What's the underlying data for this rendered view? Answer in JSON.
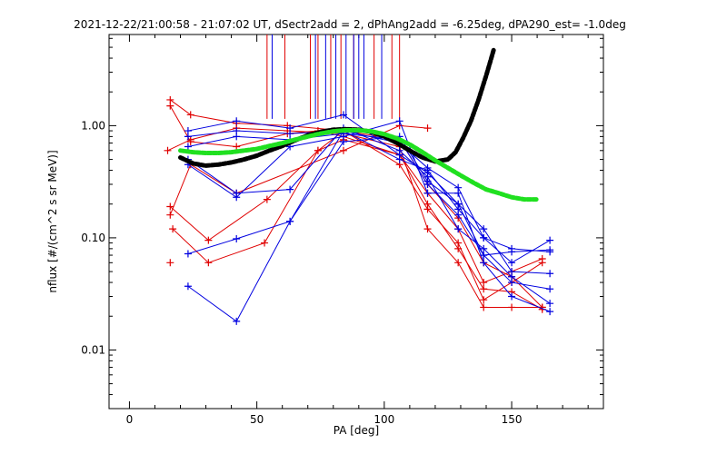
{
  "chart_data": {
    "type": "line",
    "title": "2021-12-22/21:00:58 - 21:07:02 UT, dSectr2add = 2, dPhAng2add = -6.25deg, dPA290_est=  -1.0deg",
    "xlabel": "PA [deg]",
    "ylabel": "nflux [#/(cm^2 s sr MeV)]",
    "xlim": [
      -8,
      186
    ],
    "ylim": [
      0.003,
      6.5
    ],
    "ylog": true,
    "grid": false,
    "xticks": [
      0,
      50,
      100,
      150
    ],
    "xtick_labels": [
      "0",
      "50",
      "100",
      "150"
    ],
    "yticks": [
      0.01,
      0.1,
      1.0
    ],
    "ytick_labels": [
      "0.01",
      "0.10",
      "1.00"
    ],
    "colors": {
      "red": "#e00000",
      "blue": "#0000e0",
      "black": "#000000",
      "green": "#20e020"
    },
    "series": [
      {
        "color": "red",
        "marker": "+",
        "x": [
          16,
          24,
          42,
          62,
          84,
          106,
          117,
          129,
          139,
          150,
          162
        ],
        "y": [
          1.7,
          1.25,
          1.05,
          1.0,
          0.9,
          0.75,
          0.3,
          0.15,
          0.06,
          0.045,
          0.024
        ]
      },
      {
        "color": "red",
        "marker": "+",
        "x": [
          16,
          24,
          42,
          62,
          74,
          84,
          106,
          117,
          129,
          139,
          150,
          162
        ],
        "y": [
          1.5,
          0.72,
          0.65,
          0.85,
          0.9,
          0.8,
          0.55,
          0.2,
          0.08,
          0.035,
          0.033,
          0.023
        ]
      },
      {
        "color": "red",
        "marker": "+",
        "x": [
          15,
          24,
          42,
          62,
          84,
          106,
          117,
          129,
          139,
          150,
          162
        ],
        "y": [
          0.6,
          0.75,
          0.95,
          0.9,
          0.85,
          0.65,
          0.12,
          0.06,
          0.024,
          0.024,
          0.024
        ]
      },
      {
        "color": "red",
        "marker": "+",
        "x": [
          16,
          31,
          54,
          74,
          84,
          106,
          117,
          129,
          139,
          150,
          162
        ],
        "y": [
          0.19,
          0.095,
          0.22,
          0.6,
          0.75,
          0.55,
          0.25,
          0.12,
          0.04,
          0.05,
          0.065
        ]
      },
      {
        "color": "red",
        "marker": "+",
        "x": [
          17,
          31,
          53,
          74,
          84,
          106,
          117,
          129,
          139,
          150,
          162
        ],
        "y": [
          0.12,
          0.06,
          0.09,
          0.6,
          0.9,
          0.45,
          0.18,
          0.09,
          0.028,
          0.04,
          0.06
        ]
      },
      {
        "color": "red",
        "marker": "+",
        "x": [
          16,
          24,
          42,
          84,
          106,
          117
        ],
        "y": [
          0.16,
          0.45,
          0.25,
          0.6,
          1.0,
          0.95
        ]
      },
      {
        "color": "red",
        "marker": "+",
        "x": [
          16
        ],
        "y": [
          0.06
        ]
      },
      {
        "color": "blue",
        "marker": "+",
        "x": [
          23,
          42,
          63,
          84,
          106,
          117,
          129,
          139,
          150,
          165
        ],
        "y": [
          0.9,
          1.1,
          0.95,
          1.25,
          0.55,
          0.38,
          0.2,
          0.12,
          0.05,
          0.048
        ]
      },
      {
        "color": "blue",
        "marker": "+",
        "x": [
          23,
          42,
          63,
          84,
          106,
          117,
          129,
          139,
          150,
          165
        ],
        "y": [
          0.8,
          0.9,
          0.85,
          0.9,
          0.7,
          0.42,
          0.28,
          0.1,
          0.08,
          0.075
        ]
      },
      {
        "color": "blue",
        "marker": "+",
        "x": [
          23,
          42,
          63,
          84,
          106,
          117,
          129,
          139,
          150,
          165
        ],
        "y": [
          0.65,
          0.8,
          0.75,
          0.85,
          0.75,
          0.3,
          0.16,
          0.07,
          0.04,
          0.035
        ]
      },
      {
        "color": "blue",
        "marker": "+",
        "x": [
          23,
          42,
          63,
          84,
          106,
          117,
          129,
          139,
          150,
          165
        ],
        "y": [
          0.45,
          0.23,
          0.65,
          0.8,
          1.1,
          0.25,
          0.25,
          0.06,
          0.03,
          0.022
        ]
      },
      {
        "color": "blue",
        "marker": "+",
        "x": [
          23,
          42,
          63,
          84,
          106,
          117,
          129,
          139,
          150,
          165
        ],
        "y": [
          0.5,
          0.25,
          0.27,
          0.95,
          0.6,
          0.35,
          0.12,
          0.08,
          0.045,
          0.026
        ]
      },
      {
        "color": "blue",
        "marker": "+",
        "x": [
          23,
          42,
          63,
          84,
          106,
          117,
          129,
          139,
          150,
          165
        ],
        "y": [
          0.072,
          0.098,
          0.14,
          0.9,
          0.5,
          0.4,
          0.18,
          0.1,
          0.06,
          0.095
        ]
      },
      {
        "color": "blue",
        "marker": "+",
        "x": [
          23,
          42,
          63,
          84,
          106,
          117,
          129,
          139,
          150,
          165
        ],
        "y": [
          0.037,
          0.018,
          0.14,
          0.72,
          0.8,
          0.32,
          0.2,
          0.07,
          0.075,
          0.078
        ]
      }
    ],
    "verticals": [
      {
        "color": "red",
        "x": [
          54,
          61,
          71,
          74,
          79,
          83,
          88,
          96,
          103,
          106
        ],
        "y_from": 1.15,
        "y_to": 6.5
      },
      {
        "color": "blue",
        "x": [
          56,
          73,
          77,
          81,
          85,
          88,
          90,
          92,
          99
        ],
        "y_from": 1.15,
        "y_to": 6.5
      }
    ],
    "fits": [
      {
        "name": "black",
        "color": "black",
        "x": [
          20,
          25,
          30,
          35,
          40,
          45,
          50,
          55,
          60,
          65,
          70,
          75,
          80,
          85,
          90,
          95,
          100,
          105,
          110,
          115,
          120,
          125,
          128,
          131,
          134,
          137,
          140,
          142,
          143
        ],
        "y": [
          0.52,
          0.46,
          0.44,
          0.45,
          0.47,
          0.5,
          0.54,
          0.6,
          0.66,
          0.74,
          0.82,
          0.88,
          0.92,
          0.93,
          0.92,
          0.88,
          0.8,
          0.7,
          0.6,
          0.52,
          0.48,
          0.5,
          0.58,
          0.78,
          1.1,
          1.7,
          2.8,
          4.0,
          4.8
        ]
      },
      {
        "name": "green",
        "color": "green",
        "x": [
          20,
          25,
          30,
          35,
          40,
          45,
          50,
          55,
          60,
          65,
          70,
          75,
          80,
          85,
          90,
          95,
          100,
          105,
          110,
          115,
          120,
          125,
          130,
          135,
          140,
          145,
          150,
          155,
          160
        ],
        "y": [
          0.6,
          0.58,
          0.57,
          0.57,
          0.58,
          0.6,
          0.62,
          0.66,
          0.7,
          0.75,
          0.8,
          0.85,
          0.89,
          0.91,
          0.91,
          0.89,
          0.84,
          0.77,
          0.68,
          0.58,
          0.49,
          0.42,
          0.36,
          0.31,
          0.27,
          0.25,
          0.23,
          0.22,
          0.22
        ]
      }
    ]
  }
}
